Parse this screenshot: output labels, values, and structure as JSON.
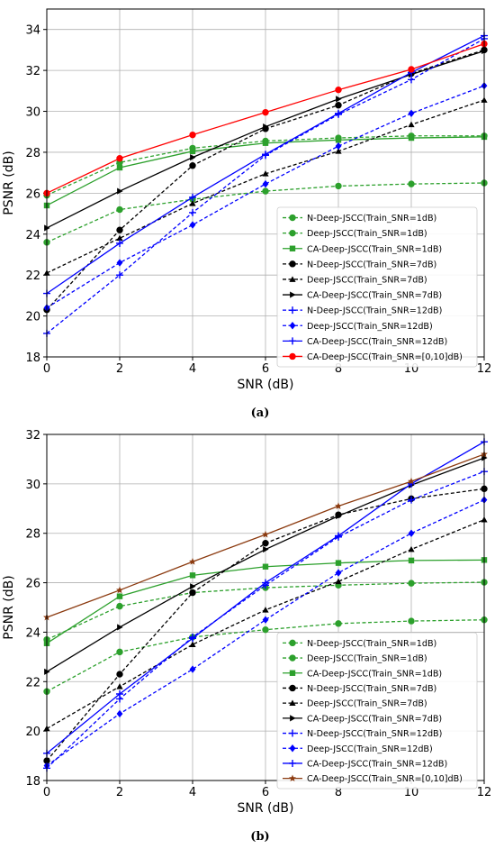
{
  "chart_data": [
    {
      "type": "line",
      "caption": "(a)",
      "xlabel": "SNR (dB)",
      "ylabel": "PSNR (dB)",
      "xlim": [
        0,
        12
      ],
      "ylim": [
        18,
        35
      ],
      "xticks": [
        0,
        2,
        4,
        6,
        8,
        10,
        12
      ],
      "yticks": [
        18,
        20,
        22,
        24,
        26,
        28,
        30,
        32,
        34
      ],
      "grid": true,
      "legend_position": "lower-right",
      "x": [
        0,
        2,
        4,
        6,
        8,
        10,
        12
      ],
      "series": [
        {
          "name": "N-Deep-JSCC(Train_SNR=1dB)",
          "color": "#2ca02c",
          "dash": "dashed",
          "marker": "circle",
          "values": [
            23.6,
            25.2,
            25.7,
            26.1,
            26.35,
            26.45,
            26.5
          ]
        },
        {
          "name": "Deep-JSCC(Train_SNR=1dB)",
          "color": "#2ca02c",
          "dash": "dashed",
          "marker": "circle",
          "values": [
            25.9,
            27.5,
            28.2,
            28.55,
            28.7,
            28.8,
            28.8
          ]
        },
        {
          "name": "CA-Deep-JSCC(Train_SNR=1dB)",
          "color": "#2ca02c",
          "dash": "solid",
          "marker": "square",
          "values": [
            25.4,
            27.25,
            28.05,
            28.45,
            28.6,
            28.7,
            28.75
          ]
        },
        {
          "name": "N-Deep-JSCC(Train_SNR=7dB)",
          "color": "#000000",
          "dash": "dashed",
          "marker": "circle",
          "values": [
            20.3,
            24.2,
            27.35,
            29.15,
            30.3,
            31.85,
            33.0
          ]
        },
        {
          "name": "Deep-JSCC(Train_SNR=7dB)",
          "color": "#000000",
          "dash": "dashed",
          "marker": "triangle",
          "values": [
            22.1,
            23.8,
            25.5,
            26.95,
            28.05,
            29.35,
            30.55
          ]
        },
        {
          "name": "CA-Deep-JSCC(Train_SNR=7dB)",
          "color": "#000000",
          "dash": "solid",
          "marker": "triangle-right",
          "values": [
            24.3,
            26.1,
            27.75,
            29.25,
            30.6,
            31.8,
            32.95
          ]
        },
        {
          "name": "N-Deep-JSCC(Train_SNR=12dB)",
          "color": "#0000ff",
          "dash": "dashed",
          "marker": "plus",
          "values": [
            19.15,
            22.0,
            25.05,
            27.85,
            29.85,
            31.55,
            33.55
          ]
        },
        {
          "name": "Deep-JSCC(Train_SNR=12dB)",
          "color": "#0000ff",
          "dash": "dashed",
          "marker": "diamond",
          "values": [
            20.4,
            22.6,
            24.45,
            26.45,
            28.3,
            29.9,
            31.25
          ]
        },
        {
          "name": "CA-Deep-JSCC(Train_SNR=12dB)",
          "color": "#0000ff",
          "dash": "solid",
          "marker": "plus",
          "values": [
            21.1,
            23.55,
            25.8,
            27.9,
            29.9,
            31.9,
            33.7
          ]
        },
        {
          "name": "CA-Deep-JSCC(Train_SNR=[0,10]dB)",
          "color": "#ff0000",
          "dash": "solid",
          "marker": "circle",
          "values": [
            26.0,
            27.7,
            28.85,
            29.95,
            31.05,
            32.05,
            33.3
          ]
        }
      ]
    },
    {
      "type": "line",
      "caption": "(b)",
      "xlabel": "SNR (dB)",
      "ylabel": "PSNR (dB)",
      "xlim": [
        0,
        12
      ],
      "ylim": [
        18,
        32
      ],
      "xticks": [
        0,
        2,
        4,
        6,
        8,
        10,
        12
      ],
      "yticks": [
        18,
        20,
        22,
        24,
        26,
        28,
        30,
        32
      ],
      "grid": true,
      "legend_position": "lower-right",
      "x": [
        0,
        2,
        4,
        6,
        8,
        10,
        12
      ],
      "series": [
        {
          "name": "N-Deep-JSCC(Train_SNR=1dB)",
          "color": "#2ca02c",
          "dash": "dashed",
          "marker": "circle",
          "values": [
            21.6,
            23.2,
            23.8,
            24.1,
            24.35,
            24.45,
            24.5
          ]
        },
        {
          "name": "Deep-JSCC(Train_SNR=1dB)",
          "color": "#2ca02c",
          "dash": "dashed",
          "marker": "circle",
          "values": [
            23.7,
            25.05,
            25.6,
            25.8,
            25.9,
            25.98,
            26.02
          ]
        },
        {
          "name": "CA-Deep-JSCC(Train_SNR=1dB)",
          "color": "#2ca02c",
          "dash": "solid",
          "marker": "square",
          "values": [
            23.55,
            25.45,
            26.3,
            26.65,
            26.8,
            26.9,
            26.92
          ]
        },
        {
          "name": "N-Deep-JSCC(Train_SNR=7dB)",
          "color": "#000000",
          "dash": "dashed",
          "marker": "circle",
          "values": [
            18.8,
            22.3,
            25.6,
            27.6,
            28.75,
            29.4,
            29.8
          ]
        },
        {
          "name": "Deep-JSCC(Train_SNR=7dB)",
          "color": "#000000",
          "dash": "dashed",
          "marker": "triangle",
          "values": [
            20.1,
            21.8,
            23.5,
            24.9,
            26.05,
            27.35,
            28.55
          ]
        },
        {
          "name": "CA-Deep-JSCC(Train_SNR=7dB)",
          "color": "#000000",
          "dash": "solid",
          "marker": "triangle-right",
          "values": [
            22.4,
            24.2,
            25.85,
            27.35,
            28.7,
            29.95,
            31.05
          ]
        },
        {
          "name": "N-Deep-JSCC(Train_SNR=12dB)",
          "color": "#0000ff",
          "dash": "dashed",
          "marker": "plus",
          "values": [
            18.5,
            21.3,
            23.8,
            25.9,
            27.85,
            29.35,
            30.5
          ]
        },
        {
          "name": "Deep-JSCC(Train_SNR=12dB)",
          "color": "#0000ff",
          "dash": "dashed",
          "marker": "diamond",
          "values": [
            18.6,
            20.7,
            22.5,
            24.5,
            26.4,
            28.0,
            29.35
          ]
        },
        {
          "name": "CA-Deep-JSCC(Train_SNR=12dB)",
          "color": "#0000ff",
          "dash": "solid",
          "marker": "plus",
          "values": [
            19.1,
            21.5,
            23.75,
            26.0,
            27.9,
            30.0,
            31.7
          ]
        },
        {
          "name": "CA-Deep-JSCC(Train_SNR=[0,10]dB)",
          "color": "#8b3a0f",
          "dash": "solid",
          "marker": "star",
          "values": [
            24.6,
            25.7,
            26.85,
            27.95,
            29.1,
            30.1,
            31.2
          ]
        }
      ]
    }
  ]
}
